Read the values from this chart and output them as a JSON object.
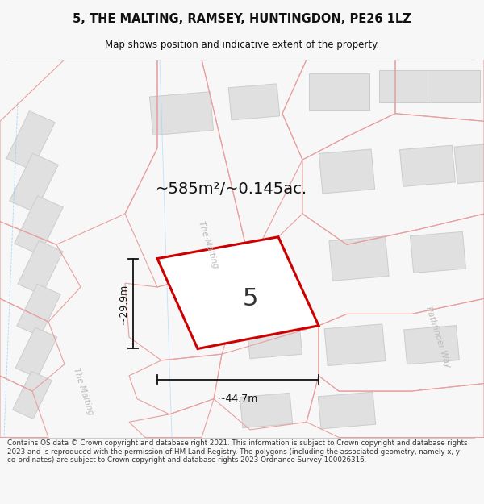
{
  "title": "5, THE MALTING, RAMSEY, HUNTINGDON, PE26 1LZ",
  "subtitle": "Map shows position and indicative extent of the property.",
  "footer": "Contains OS data © Crown copyright and database right 2021. This information is subject to Crown copyright and database rights 2023 and is reproduced with the permission of HM Land Registry. The polygons (including the associated geometry, namely x, y co-ordinates) are subject to Crown copyright and database rights 2023 Ordnance Survey 100026316.",
  "area_text": "~585m²/~0.145ac.",
  "width_label": "~44.7m",
  "height_label": "~29.9m",
  "plot_number": "5",
  "bg_color": "#f7f7f7",
  "map_bg": "#ffffff",
  "plot_color": "#cc0000",
  "building_fill": "#e0e0e0",
  "building_edge": "#cccccc",
  "boundary_color": "#e8a0a0",
  "dim_color": "#111111",
  "road_label_color": "#bbbbbb",
  "title_color": "#111111",
  "footer_color": "#333333",
  "cyan_line_color": "#88ccff"
}
